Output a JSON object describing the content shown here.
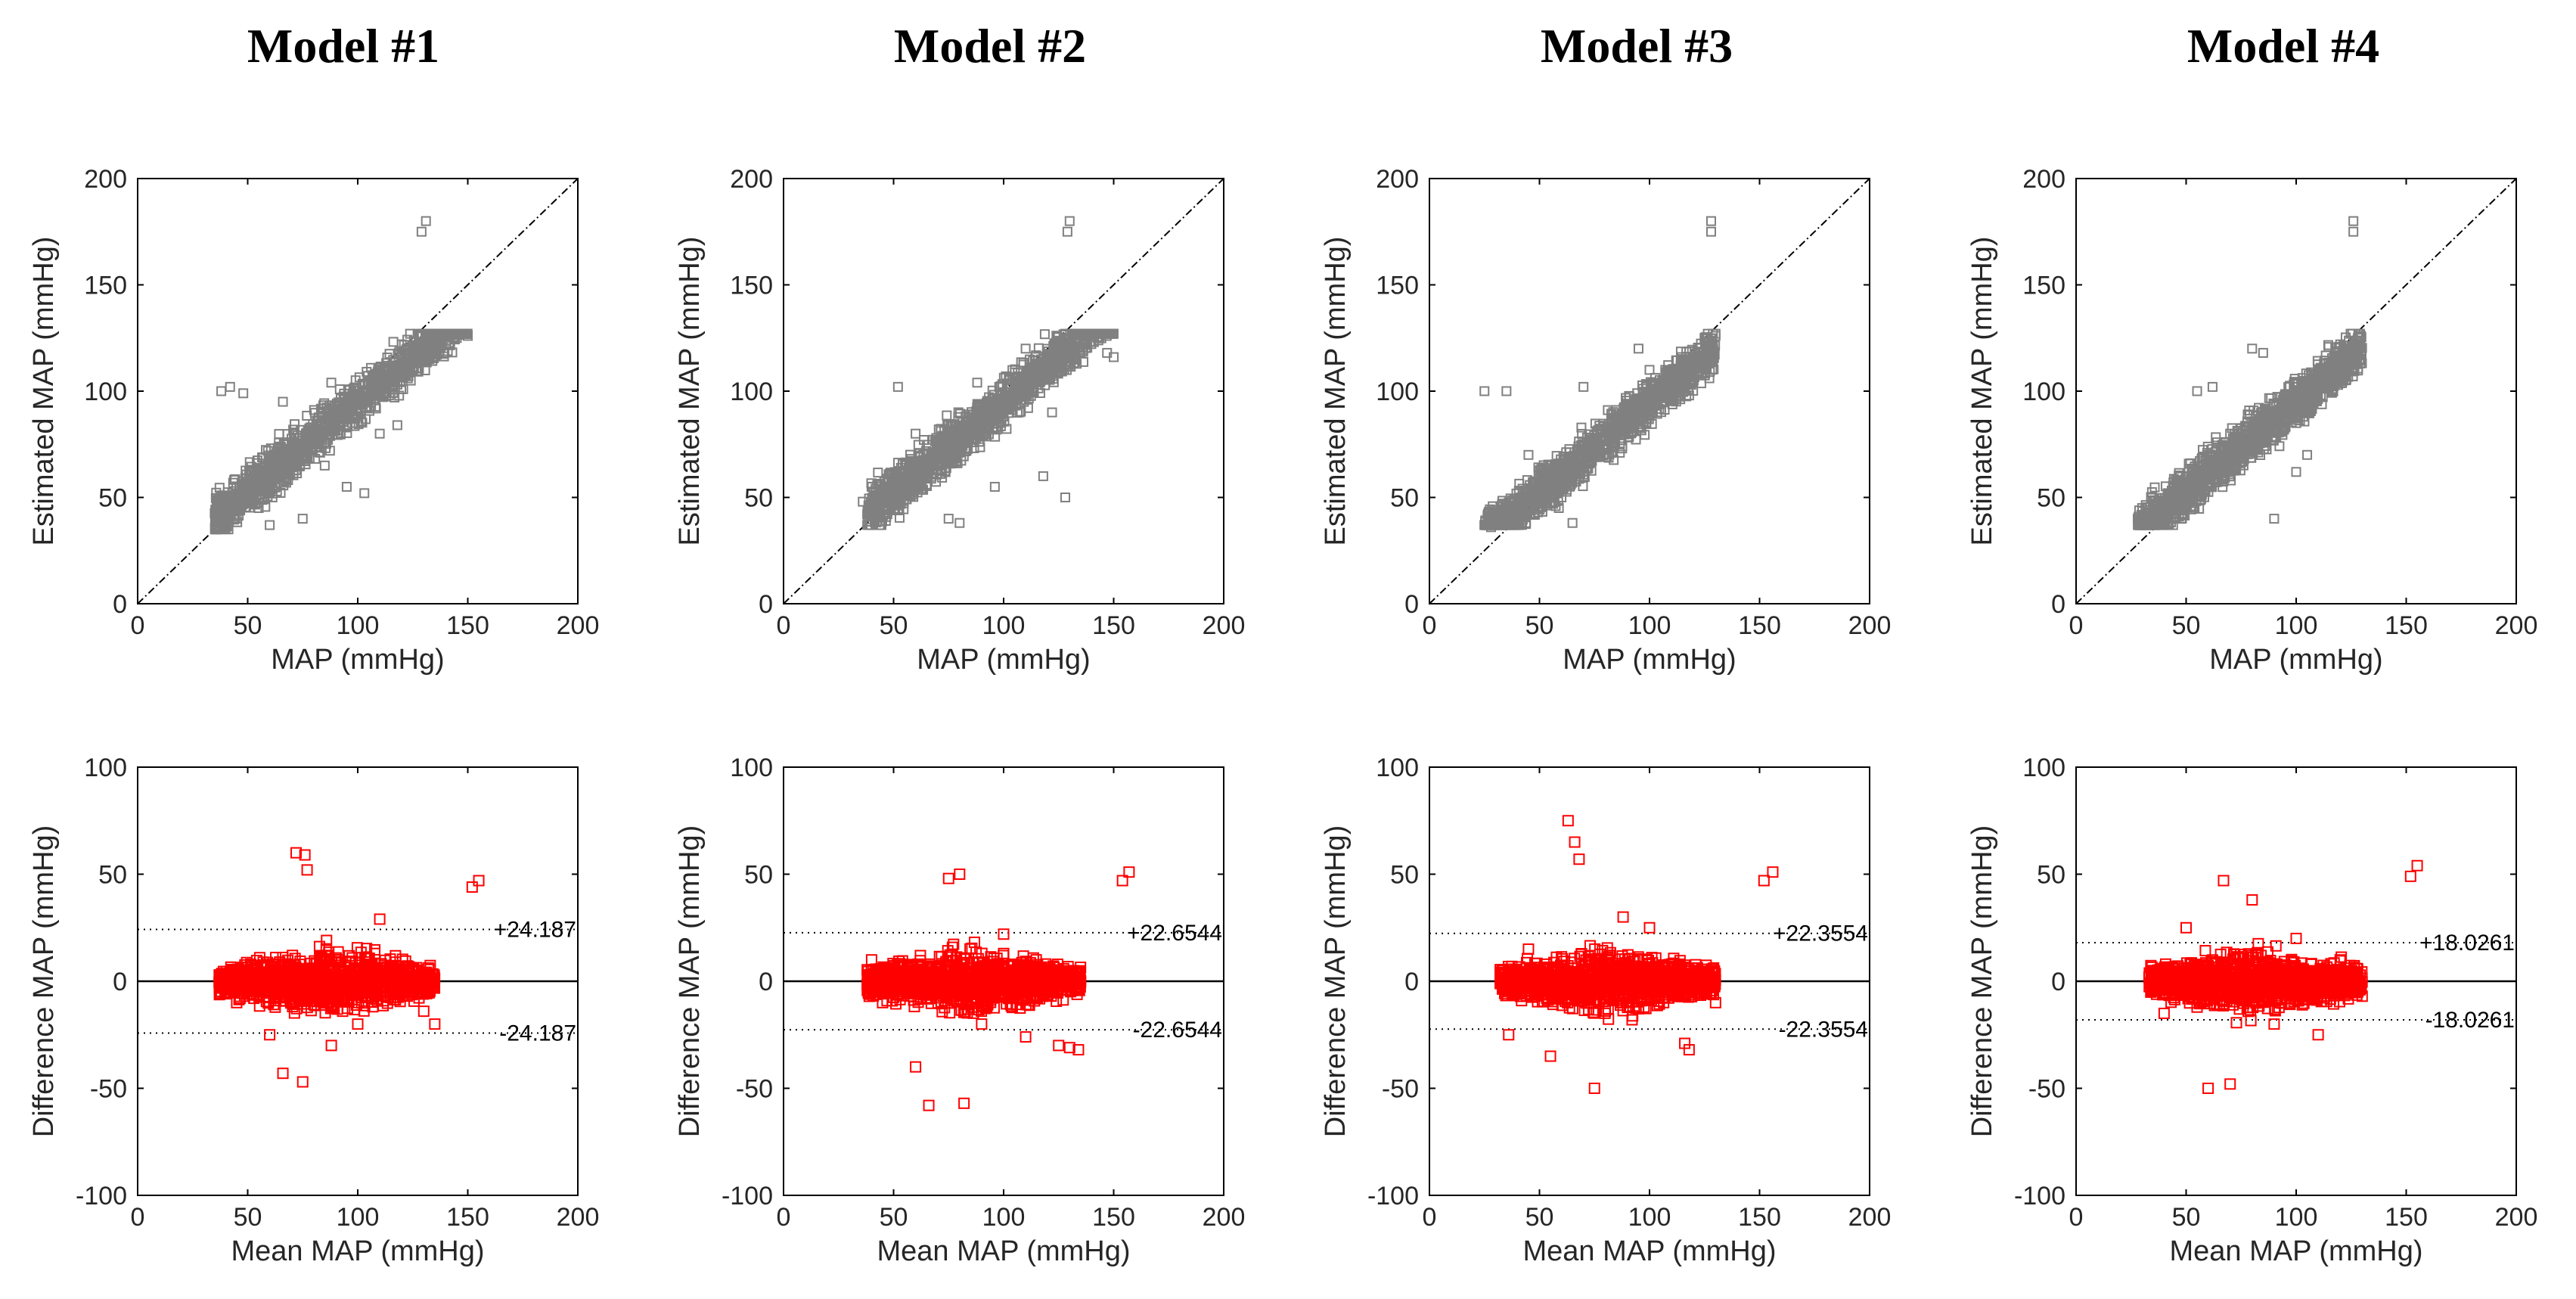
{
  "figure": {
    "titles": [
      "Model #1",
      "Model #2",
      "Model #3",
      "Model #4"
    ]
  },
  "colors": {
    "scatter": "#808080",
    "bland_altman": "#ff0000",
    "line": "#000000"
  },
  "chart_data": [
    {
      "type": "scatter",
      "model": "Model #1",
      "title": "",
      "xlabel": "MAP (mmHg)",
      "ylabel": "Estimated MAP (mmHg)",
      "xlim": [
        0,
        200
      ],
      "ylim": [
        0,
        200
      ],
      "xticks": [
        0,
        50,
        100,
        150,
        200
      ],
      "yticks": [
        0,
        50,
        100,
        150,
        200
      ],
      "identity_line": true,
      "cloud": {
        "x_range": [
          35,
          150
        ],
        "y_range": [
          35,
          127
        ],
        "density": "dense"
      },
      "points": [
        [
          131,
          180
        ],
        [
          129,
          175
        ],
        [
          38,
          100
        ],
        [
          42,
          102
        ],
        [
          48,
          99
        ],
        [
          150,
          126
        ],
        [
          145,
          125
        ],
        [
          118,
          84
        ],
        [
          110,
          80
        ],
        [
          103,
          52
        ],
        [
          95,
          55
        ],
        [
          125,
          110
        ],
        [
          75,
          40
        ],
        [
          60,
          37
        ],
        [
          55,
          45
        ],
        [
          85,
          65
        ],
        [
          100,
          92
        ],
        [
          88,
          104
        ],
        [
          120,
          122
        ],
        [
          70,
          70
        ],
        [
          66,
          95
        ],
        [
          45,
          40
        ]
      ]
    },
    {
      "type": "bland_altman",
      "model": "Model #1",
      "xlabel": "Mean MAP (mmHg)",
      "ylabel": "Difference MAP (mmHg)",
      "xlim": [
        0,
        200
      ],
      "ylim": [
        -100,
        100
      ],
      "xticks": [
        0,
        50,
        100,
        150,
        200
      ],
      "yticks": [
        -100,
        -50,
        0,
        50,
        100
      ],
      "mean_line": 0,
      "limits": [
        24.187,
        -24.187
      ],
      "limit_labels": [
        "+24.187",
        "-24.187"
      ],
      "cloud": {
        "x_range": [
          37,
          135
        ],
        "y_range": [
          -45,
          60
        ],
        "density": "dense"
      },
      "points": [
        [
          155,
          47
        ],
        [
          152,
          44
        ],
        [
          72,
          60
        ],
        [
          76,
          59
        ],
        [
          77,
          52
        ],
        [
          75,
          -47
        ],
        [
          66,
          -43
        ],
        [
          135,
          -20
        ],
        [
          110,
          29
        ],
        [
          100,
          -20
        ],
        [
          88,
          -30
        ],
        [
          60,
          -25
        ],
        [
          45,
          -10
        ],
        [
          40,
          -2
        ],
        [
          120,
          -5
        ],
        [
          130,
          -14
        ]
      ]
    },
    {
      "type": "scatter",
      "model": "Model #2",
      "title": "",
      "xlabel": "MAP (mmHg)",
      "ylabel": "Estimated MAP (mmHg)",
      "xlim": [
        0,
        200
      ],
      "ylim": [
        0,
        200
      ],
      "xticks": [
        0,
        50,
        100,
        150,
        200
      ],
      "yticks": [
        0,
        50,
        100,
        150,
        200
      ],
      "identity_line": true,
      "cloud": {
        "x_range": [
          38,
          150
        ],
        "y_range": [
          37,
          127
        ],
        "density": "dense"
      },
      "points": [
        [
          130,
          180
        ],
        [
          129,
          175
        ],
        [
          40,
          55
        ],
        [
          36,
          48
        ],
        [
          52,
          102
        ],
        [
          128,
          50
        ],
        [
          118,
          60
        ],
        [
          122,
          90
        ],
        [
          115,
          105
        ],
        [
          147,
          118
        ],
        [
          150,
          116
        ],
        [
          100,
          90
        ],
        [
          75,
          40
        ],
        [
          80,
          38
        ],
        [
          60,
          80
        ],
        [
          88,
          104
        ],
        [
          96,
          55
        ],
        [
          70,
          65
        ],
        [
          110,
          120
        ]
      ]
    },
    {
      "type": "bland_altman",
      "model": "Model #2",
      "xlabel": "Mean MAP (mmHg)",
      "ylabel": "Difference MAP (mmHg)",
      "xlim": [
        0,
        200
      ],
      "ylim": [
        -100,
        100
      ],
      "xticks": [
        0,
        50,
        100,
        150,
        200
      ],
      "yticks": [
        -100,
        -50,
        0,
        50,
        100
      ],
      "mean_line": 0,
      "limits": [
        22.6544,
        -22.6544
      ],
      "limit_labels": [
        "+22.6544",
        "-22.6544"
      ],
      "cloud": {
        "x_range": [
          38,
          135
        ],
        "y_range": [
          -58,
          50
        ],
        "density": "dense"
      },
      "points": [
        [
          157,
          51
        ],
        [
          154,
          47
        ],
        [
          80,
          50
        ],
        [
          75,
          48
        ],
        [
          66,
          -58
        ],
        [
          82,
          -57
        ],
        [
          130,
          -31
        ],
        [
          134,
          -32
        ],
        [
          125,
          -30
        ],
        [
          110,
          -26
        ],
        [
          40,
          10
        ],
        [
          45,
          -10
        ],
        [
          100,
          22
        ],
        [
          120,
          -5
        ],
        [
          60,
          -40
        ],
        [
          90,
          -20
        ]
      ]
    },
    {
      "type": "scatter",
      "model": "Model #3",
      "title": "",
      "xlabel": "MAP (mmHg)",
      "ylabel": "Estimated MAP (mmHg)",
      "xlim": [
        0,
        200
      ],
      "ylim": [
        0,
        200
      ],
      "xticks": [
        0,
        50,
        100,
        150,
        200
      ],
      "yticks": [
        0,
        50,
        100,
        150,
        200
      ],
      "identity_line": true,
      "cloud": {
        "x_range": [
          25,
          130
        ],
        "y_range": [
          37,
          127
        ],
        "density": "dense"
      },
      "points": [
        [
          128,
          180
        ],
        [
          128,
          175
        ],
        [
          25,
          100
        ],
        [
          35,
          100
        ],
        [
          30,
          42
        ],
        [
          28,
          36
        ],
        [
          70,
          102
        ],
        [
          112,
          100
        ],
        [
          118,
          98
        ],
        [
          125,
          125
        ],
        [
          130,
          126
        ],
        [
          95,
          120
        ],
        [
          60,
          50
        ],
        [
          80,
          75
        ],
        [
          45,
          70
        ],
        [
          100,
          110
        ],
        [
          65,
          38
        ]
      ]
    },
    {
      "type": "bland_altman",
      "model": "Model #3",
      "xlabel": "Mean MAP (mmHg)",
      "ylabel": "Difference MAP (mmHg)",
      "xlim": [
        0,
        200
      ],
      "ylim": [
        -100,
        100
      ],
      "xticks": [
        0,
        50,
        100,
        150,
        200
      ],
      "yticks": [
        -100,
        -50,
        0,
        50,
        100
      ],
      "mean_line": 0,
      "limits": [
        22.3554,
        -22.3554
      ],
      "limit_labels": [
        "+22.3554",
        "-22.3554"
      ],
      "cloud": {
        "x_range": [
          32,
          130
        ],
        "y_range": [
          -50,
          75
        ],
        "density": "dense"
      },
      "points": [
        [
          156,
          51
        ],
        [
          152,
          47
        ],
        [
          63,
          75
        ],
        [
          66,
          65
        ],
        [
          68,
          57
        ],
        [
          75,
          -50
        ],
        [
          116,
          -29
        ],
        [
          118,
          -32
        ],
        [
          125,
          -5
        ],
        [
          130,
          -10
        ],
        [
          33,
          5
        ],
        [
          36,
          -25
        ],
        [
          100,
          25
        ],
        [
          88,
          30
        ],
        [
          55,
          -35
        ],
        [
          45,
          15
        ]
      ]
    },
    {
      "type": "scatter",
      "model": "Model #4",
      "title": "",
      "xlabel": "MAP (mmHg)",
      "ylabel": "Estimated MAP (mmHg)",
      "xlim": [
        0,
        200
      ],
      "ylim": [
        0,
        200
      ],
      "xticks": [
        0,
        50,
        100,
        150,
        200
      ],
      "yticks": [
        0,
        50,
        100,
        150,
        200
      ],
      "identity_line": true,
      "cloud": {
        "x_range": [
          28,
          130
        ],
        "y_range": [
          37,
          127
        ],
        "density": "dense"
      },
      "points": [
        [
          126,
          180
        ],
        [
          126,
          175
        ],
        [
          30,
          45
        ],
        [
          28,
          40
        ],
        [
          55,
          100
        ],
        [
          62,
          102
        ],
        [
          80,
          120
        ],
        [
          85,
          118
        ],
        [
          100,
          62
        ],
        [
          105,
          70
        ],
        [
          128,
          125
        ],
        [
          120,
          122
        ],
        [
          90,
          40
        ],
        [
          50,
          60
        ],
        [
          70,
          80
        ],
        [
          110,
          110
        ]
      ]
    },
    {
      "type": "bland_altman",
      "model": "Model #4",
      "xlabel": "Mean MAP (mmHg)",
      "ylabel": "Difference MAP (mmHg)",
      "xlim": [
        0,
        200
      ],
      "ylim": [
        -100,
        100
      ],
      "xticks": [
        0,
        50,
        100,
        150,
        200
      ],
      "yticks": [
        -100,
        -50,
        0,
        50,
        100
      ],
      "mean_line": 0,
      "limits": [
        18.0261,
        -18.0261
      ],
      "limit_labels": [
        "+18.0261",
        "-18.0261"
      ],
      "cloud": {
        "x_range": [
          33,
          130
        ],
        "y_range": [
          -50,
          47
        ],
        "density": "dense"
      },
      "points": [
        [
          155,
          54
        ],
        [
          152,
          49
        ],
        [
          67,
          47
        ],
        [
          80,
          38
        ],
        [
          60,
          -50
        ],
        [
          70,
          -48
        ],
        [
          128,
          -5
        ],
        [
          130,
          -7
        ],
        [
          110,
          -25
        ],
        [
          100,
          20
        ],
        [
          35,
          5
        ],
        [
          40,
          -15
        ],
        [
          90,
          -20
        ],
        [
          50,
          25
        ],
        [
          120,
          10
        ]
      ]
    }
  ]
}
